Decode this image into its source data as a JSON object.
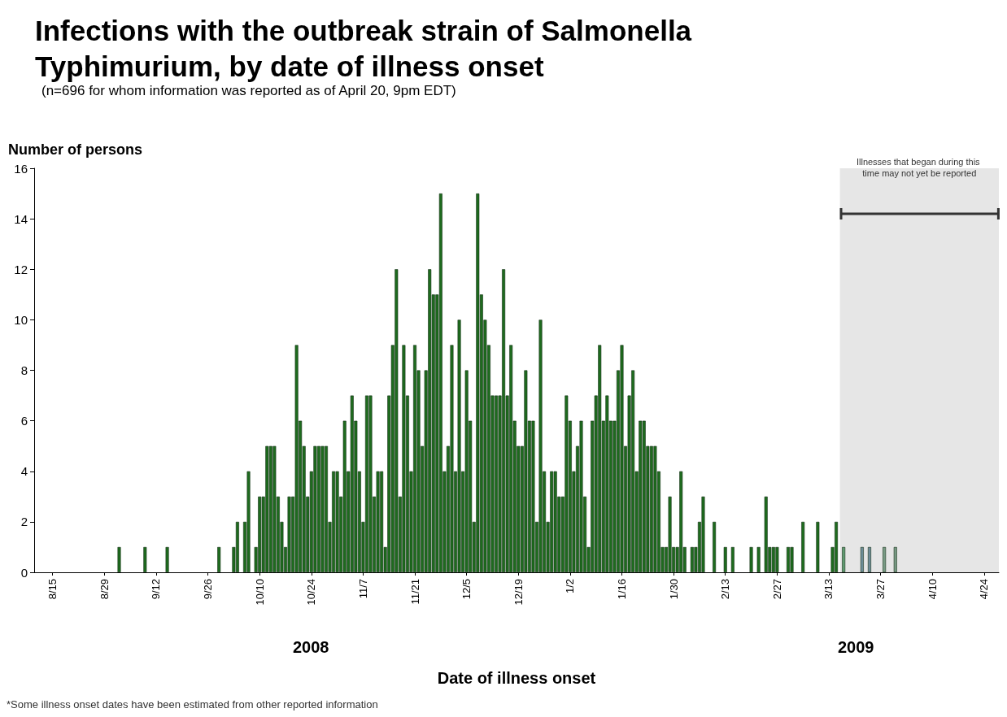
{
  "chart_data": {
    "type": "bar",
    "title": "Infections with the outbreak strain of Salmonella Typhimurium, by date of illness onset",
    "subtitle": "(n=696 for whom information was reported as of April 20, 9pm EDT)",
    "xlabel": "Date of illness onset",
    "ylabel": "Number of persons",
    "annotations": [
      "2008",
      "2009",
      "*Some illness onset dates have been estimated from other reported information"
    ],
    "x": [
      "2008-09-02",
      "2008-09-09",
      "2008-09-15",
      "2008-09-29",
      "2008-10-03",
      "2008-10-04",
      "2008-10-06",
      "2008-10-07",
      "2008-10-09",
      "2008-10-10",
      "2008-10-11",
      "2008-10-12",
      "2008-10-13",
      "2008-10-14",
      "2008-10-15",
      "2008-10-16",
      "2008-10-17",
      "2008-10-18",
      "2008-10-19",
      "2008-10-20",
      "2008-10-21",
      "2008-10-22",
      "2008-10-23",
      "2008-10-24",
      "2008-10-25",
      "2008-10-26",
      "2008-10-27",
      "2008-10-28",
      "2008-10-29",
      "2008-10-30",
      "2008-10-31",
      "2008-11-01",
      "2008-11-02",
      "2008-11-03",
      "2008-11-04",
      "2008-11-05",
      "2008-11-06",
      "2008-11-07",
      "2008-11-08",
      "2008-11-09",
      "2008-11-10",
      "2008-11-11",
      "2008-11-12",
      "2008-11-13",
      "2008-11-14",
      "2008-11-15",
      "2008-11-16",
      "2008-11-17",
      "2008-11-18",
      "2008-11-19",
      "2008-11-20",
      "2008-11-21",
      "2008-11-22",
      "2008-11-23",
      "2008-11-24",
      "2008-11-25",
      "2008-11-26",
      "2008-11-27",
      "2008-11-28",
      "2008-11-29",
      "2008-11-30",
      "2008-12-01",
      "2008-12-02",
      "2008-12-03",
      "2008-12-04",
      "2008-12-05",
      "2008-12-06",
      "2008-12-07",
      "2008-12-08",
      "2008-12-09",
      "2008-12-10",
      "2008-12-11",
      "2008-12-12",
      "2008-12-13",
      "2008-12-14",
      "2008-12-15",
      "2008-12-16",
      "2008-12-17",
      "2008-12-18",
      "2008-12-19",
      "2008-12-20",
      "2008-12-21",
      "2008-12-22",
      "2008-12-23",
      "2008-12-24",
      "2008-12-25",
      "2008-12-26",
      "2008-12-27",
      "2008-12-28",
      "2008-12-29",
      "2008-12-30",
      "2008-12-31",
      "2009-01-01",
      "2009-01-02",
      "2009-01-03",
      "2009-01-04",
      "2009-01-05",
      "2009-01-06",
      "2009-01-07",
      "2009-01-08",
      "2009-01-09",
      "2009-01-10",
      "2009-01-11",
      "2009-01-12",
      "2009-01-13",
      "2009-01-14",
      "2009-01-15",
      "2009-01-16",
      "2009-01-17",
      "2009-01-18",
      "2009-01-19",
      "2009-01-20",
      "2009-01-21",
      "2009-01-22",
      "2009-01-23",
      "2009-01-24",
      "2009-01-25",
      "2009-01-26",
      "2009-01-27",
      "2009-01-28",
      "2009-01-29",
      "2009-01-30",
      "2009-01-31",
      "2009-02-01",
      "2009-02-02",
      "2009-02-04",
      "2009-02-05",
      "2009-02-06",
      "2009-02-07",
      "2009-02-10",
      "2009-02-13",
      "2009-02-15",
      "2009-02-20",
      "2009-02-22",
      "2009-02-24",
      "2009-02-25",
      "2009-02-26",
      "2009-02-27",
      "2009-03-02",
      "2009-03-03",
      "2009-03-06",
      "2009-03-10",
      "2009-03-14",
      "2009-03-15",
      "2009-03-17",
      "2009-03-22",
      "2009-03-24",
      "2009-03-28",
      "2009-03-31"
    ],
    "values": [
      1,
      1,
      1,
      1,
      1,
      2,
      2,
      4,
      1,
      3,
      3,
      5,
      5,
      5,
      3,
      2,
      1,
      3,
      3,
      9,
      6,
      5,
      3,
      4,
      5,
      5,
      5,
      5,
      2,
      4,
      4,
      3,
      6,
      4,
      7,
      6,
      4,
      2,
      7,
      7,
      3,
      4,
      4,
      1,
      7,
      9,
      12,
      3,
      9,
      7,
      4,
      9,
      8,
      5,
      8,
      12,
      11,
      11,
      15,
      4,
      5,
      9,
      4,
      10,
      4,
      8,
      6,
      2,
      15,
      11,
      10,
      9,
      7,
      7,
      7,
      12,
      7,
      9,
      6,
      5,
      5,
      8,
      6,
      6,
      2,
      10,
      4,
      2,
      4,
      4,
      3,
      3,
      7,
      6,
      4,
      5,
      6,
      3,
      1,
      6,
      7,
      9,
      6,
      7,
      6,
      6,
      8,
      9,
      5,
      7,
      8,
      4,
      6,
      6,
      5,
      5,
      5,
      4,
      1,
      1,
      3,
      1,
      1,
      4,
      1,
      1,
      1,
      2,
      3,
      2,
      1,
      1,
      1,
      1,
      3,
      1,
      1,
      1,
      1,
      1,
      2,
      2,
      1,
      2,
      1,
      1,
      1,
      1,
      1
    ],
    "colors": [
      "#1e6b1e",
      "#1e6b1e",
      "#1e6b1e",
      "#1e6b1e",
      "#1e6b1e",
      "#1e6b1e",
      "#1e6b1e",
      "#1e6b1e",
      "#1e6b1e",
      "#1e6b1e",
      "#1e6b1e",
      "#1e6b1e",
      "#1e6b1e",
      "#1e6b1e",
      "#1e6b1e",
      "#1e6b1e",
      "#1e6b1e",
      "#1e6b1e",
      "#1e6b1e",
      "#1e6b1e",
      "#1e6b1e",
      "#1e6b1e",
      "#1e6b1e",
      "#1e6b1e",
      "#1e6b1e",
      "#1e6b1e",
      "#1e6b1e",
      "#1e6b1e",
      "#1e6b1e",
      "#1e6b1e",
      "#1e6b1e",
      "#1e6b1e",
      "#1e6b1e",
      "#1e6b1e",
      "#1e6b1e",
      "#1e6b1e",
      "#1e6b1e",
      "#1e6b1e",
      "#1e6b1e",
      "#1e6b1e",
      "#1e6b1e",
      "#1e6b1e",
      "#1e6b1e",
      "#1e6b1e",
      "#1e6b1e",
      "#1e6b1e",
      "#1e6b1e",
      "#1e6b1e",
      "#1e6b1e",
      "#1e6b1e",
      "#1e6b1e",
      "#1e6b1e",
      "#1e6b1e",
      "#1e6b1e",
      "#1e6b1e",
      "#1e6b1e",
      "#1e6b1e",
      "#1e6b1e",
      "#1e6b1e",
      "#1e6b1e",
      "#1e6b1e",
      "#1e6b1e",
      "#1e6b1e",
      "#1e6b1e",
      "#1e6b1e",
      "#1e6b1e",
      "#1e6b1e",
      "#1e6b1e",
      "#1e6b1e",
      "#1e6b1e",
      "#1e6b1e",
      "#1e6b1e",
      "#1e6b1e",
      "#1e6b1e",
      "#1e6b1e",
      "#1e6b1e",
      "#1e6b1e",
      "#1e6b1e",
      "#1e6b1e",
      "#1e6b1e",
      "#1e6b1e",
      "#1e6b1e",
      "#1e6b1e",
      "#1e6b1e",
      "#1e6b1e",
      "#1e6b1e",
      "#1e6b1e",
      "#1e6b1e",
      "#1e6b1e",
      "#1e6b1e",
      "#1e6b1e",
      "#1e6b1e",
      "#1e6b1e",
      "#1e6b1e",
      "#1e6b1e",
      "#1e6b1e",
      "#1e6b1e",
      "#1e6b1e",
      "#1e6b1e",
      "#1e6b1e",
      "#1e6b1e",
      "#1e6b1e",
      "#1e6b1e",
      "#1e6b1e",
      "#1e6b1e",
      "#1e6b1e",
      "#1e6b1e",
      "#1e6b1e",
      "#1e6b1e",
      "#1e6b1e",
      "#1e6b1e",
      "#1e6b1e",
      "#1e6b1e",
      "#1e6b1e",
      "#1e6b1e",
      "#1e6b1e",
      "#1e6b1e",
      "#1e6b1e",
      "#1e6b1e",
      "#1e6b1e",
      "#1e6b1e",
      "#1e6b1e",
      "#1e6b1e",
      "#1e6b1e",
      "#1e6b1e",
      "#1e6b1e",
      "#1e6b1e",
      "#1e6b1e",
      "#1e6b1e",
      "#1e6b1e",
      "#1e6b1e",
      "#1e6b1e",
      "#1e6b1e",
      "#1e6b1e",
      "#1e6b1e",
      "#1e6b1e",
      "#1e6b1e",
      "#1e6b1e",
      "#1e6b1e",
      "#1e6b1e",
      "#1e6b1e",
      "#1e6b1e",
      "#1e6b1e",
      "#1e6b1e",
      "#5f9a70",
      "#6c8c98",
      "#6c8c98",
      "#789a84",
      "#789a84"
    ],
    "xlim": [
      "2008-08-10",
      "2009-04-28"
    ],
    "xticks": [
      {
        "value": "2008-08-15",
        "label": "8/15"
      },
      {
        "value": "2008-08-29",
        "label": "8/29"
      },
      {
        "value": "2008-09-12",
        "label": "9/12"
      },
      {
        "value": "2008-09-26",
        "label": "9/26"
      },
      {
        "value": "2008-10-10",
        "label": "10/10"
      },
      {
        "value": "2008-10-24",
        "label": "10/24"
      },
      {
        "value": "2008-11-07",
        "label": "11/7"
      },
      {
        "value": "2008-11-21",
        "label": "11/21"
      },
      {
        "value": "2008-12-05",
        "label": "12/5"
      },
      {
        "value": "2008-12-19",
        "label": "12/19"
      },
      {
        "value": "2009-01-02",
        "label": "1/2"
      },
      {
        "value": "2009-01-16",
        "label": "1/16"
      },
      {
        "value": "2009-01-30",
        "label": "1/30"
      },
      {
        "value": "2009-02-13",
        "label": "2/13"
      },
      {
        "value": "2009-02-27",
        "label": "2/27"
      },
      {
        "value": "2009-03-13",
        "label": "3/13"
      },
      {
        "value": "2009-03-27",
        "label": "3/27"
      },
      {
        "value": "2009-04-10",
        "label": "4/10"
      },
      {
        "value": "2009-04-24",
        "label": "4/24"
      }
    ],
    "ylim": [
      0,
      16
    ],
    "yticks": [
      0,
      2,
      4,
      6,
      8,
      10,
      12,
      14,
      16
    ],
    "bands": [
      {
        "axis": "x",
        "from": "2009-03-16",
        "to": "2009-04-28",
        "label": "Illnesses that began during this time may not yet be reported",
        "color": "#e6e6e6"
      }
    ],
    "grid": false
  }
}
